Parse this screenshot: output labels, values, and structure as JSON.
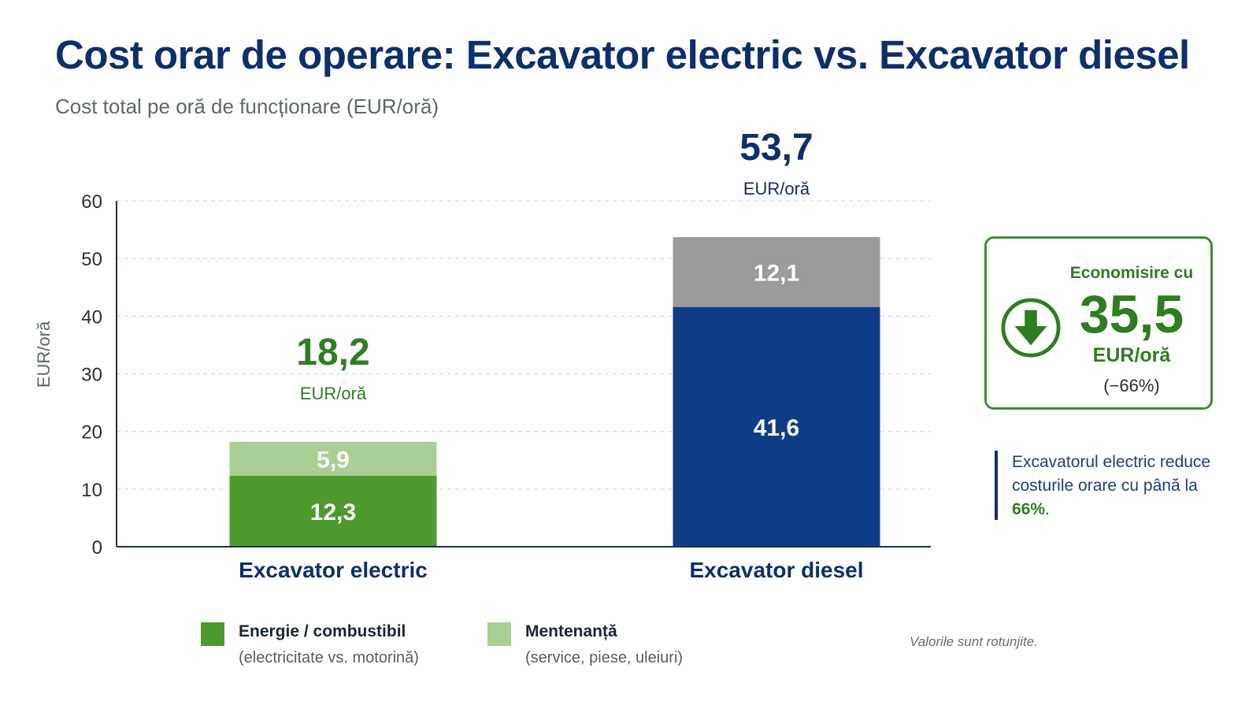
{
  "header": {
    "title": "Cost orar de operare: Excavator electric vs. Excavator diesel",
    "subtitle": "Cost total pe oră de funcționare (EUR/oră)"
  },
  "chart_data": {
    "type": "bar",
    "stacked": true,
    "categories": [
      "Excavator electric",
      "Excavator diesel"
    ],
    "series": [
      {
        "name": "Energie / combustibil",
        "values": [
          12.3,
          41.6
        ],
        "labels": [
          "12,3",
          "41,6"
        ],
        "colors": [
          "#4e9a2f",
          "#0f3d85"
        ]
      },
      {
        "name": "Mentenanță",
        "values": [
          5.9,
          12.1
        ],
        "labels": [
          "5,9",
          "12,1"
        ],
        "colors": [
          "#a9cf95",
          "#9b9b9b"
        ]
      }
    ],
    "totals": [
      {
        "value": "18,2",
        "unit": "EUR/oră",
        "color": "#2f7d22"
      },
      {
        "value": "53,7",
        "unit": "EUR/oră",
        "color": "#0d2f6b"
      }
    ],
    "ylabel": "EUR/oră",
    "ylim": [
      0,
      60
    ],
    "yticks": [
      0,
      10,
      20,
      30,
      40,
      50,
      60
    ],
    "grid": true,
    "legend_position": "bottom"
  },
  "legend": [
    {
      "name": "Energie / combustibil",
      "desc": "(electricitate vs. motorină)",
      "color": "#4e9a2f"
    },
    {
      "name": "Mentenanță",
      "desc": "(service, piese, uleiuri)",
      "color": "#a9cf95"
    }
  ],
  "savings": {
    "label": "Economisire cu",
    "value": "35,5",
    "unit": "EUR/oră",
    "percent": "(−66%)",
    "icon": "arrow-down-circle-icon",
    "color": "#2f7d22"
  },
  "callout": {
    "text_before": "Excavatorul electric reduce costurile orare cu până la ",
    "highlight": "66%",
    "text_after": "."
  },
  "note": "Valorile sunt rotunjite."
}
